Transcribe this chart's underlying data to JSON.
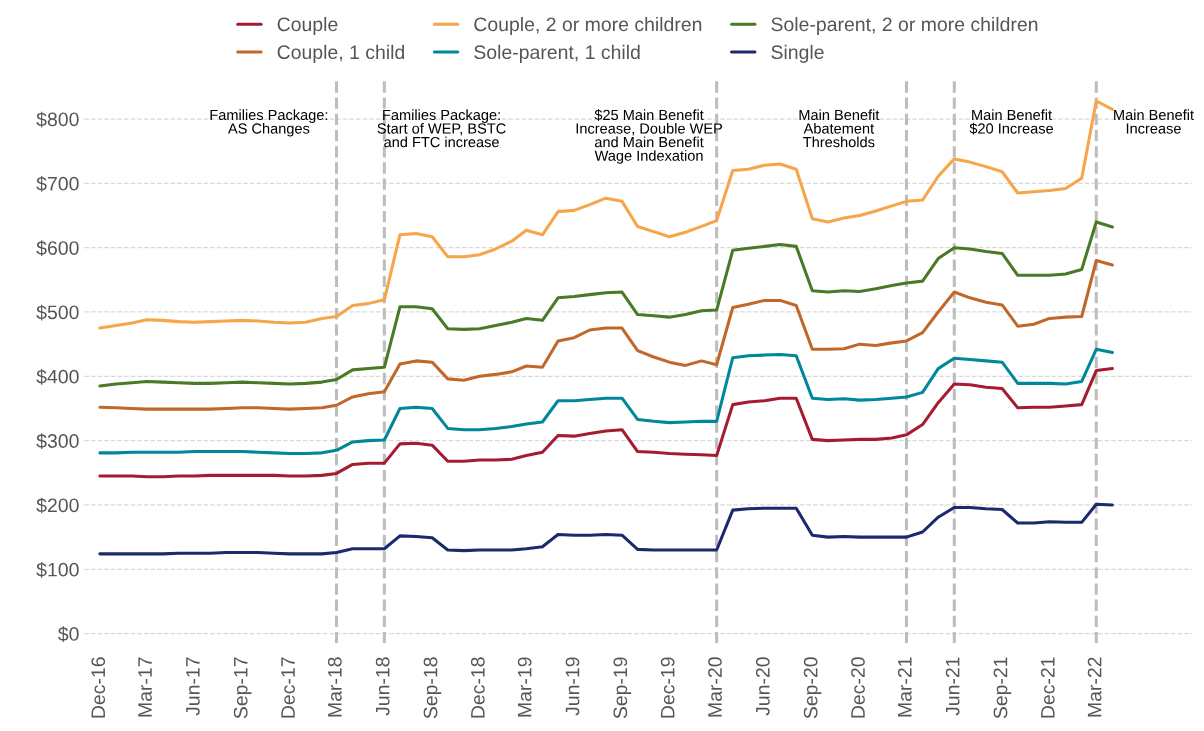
{
  "chart_data": {
    "type": "line",
    "x": [
      "2016-12",
      "2017-01",
      "2017-02",
      "2017-03",
      "2017-04",
      "2017-05",
      "2017-06",
      "2017-07",
      "2017-08",
      "2017-09",
      "2017-10",
      "2017-11",
      "2017-12",
      "2018-01",
      "2018-02",
      "2018-03",
      "2018-04",
      "2018-05",
      "2018-06",
      "2018-07",
      "2018-08",
      "2018-09",
      "2018-10",
      "2018-11",
      "2018-12",
      "2019-01",
      "2019-02",
      "2019-03",
      "2019-04",
      "2019-05",
      "2019-06",
      "2019-07",
      "2019-08",
      "2019-09",
      "2019-10",
      "2019-11",
      "2019-12",
      "2020-01",
      "2020-02",
      "2020-03",
      "2020-04",
      "2020-05",
      "2020-06",
      "2020-07",
      "2020-08",
      "2020-09",
      "2020-10",
      "2020-11",
      "2020-12",
      "2021-01",
      "2021-02",
      "2021-03",
      "2021-04",
      "2021-05",
      "2021-06",
      "2021-07",
      "2021-08",
      "2021-09",
      "2021-10",
      "2021-11",
      "2021-12",
      "2022-01",
      "2022-02",
      "2022-03",
      "2022-04"
    ],
    "series": [
      {
        "name": "Couple",
        "color": "#a51c30",
        "values": [
          245,
          245,
          245,
          244,
          244,
          245,
          245,
          246,
          246,
          246,
          246,
          246,
          245,
          245,
          246,
          249,
          263,
          265,
          265,
          295,
          296,
          293,
          268,
          268,
          270,
          270,
          271,
          277,
          282,
          308,
          307,
          311,
          315,
          317,
          283,
          282,
          280,
          279,
          278,
          277,
          356,
          360,
          362,
          366,
          366,
          302,
          300,
          301,
          302,
          302,
          304,
          309,
          325,
          359,
          388,
          387,
          383,
          381,
          351,
          352,
          352,
          354,
          356,
          409,
          412
        ]
      },
      {
        "name": "Couple, 1 child",
        "color": "#c0682a",
        "values": [
          352,
          351,
          350,
          349,
          349,
          349,
          349,
          349,
          350,
          351,
          351,
          350,
          349,
          350,
          351,
          355,
          368,
          373,
          376,
          419,
          424,
          422,
          396,
          394,
          400,
          403,
          407,
          416,
          414,
          455,
          460,
          472,
          475,
          475,
          440,
          430,
          422,
          417,
          424,
          418,
          507,
          512,
          518,
          518,
          510,
          442,
          442,
          443,
          450,
          448,
          452,
          455,
          468,
          500,
          531,
          522,
          515,
          511,
          478,
          481,
          490,
          492,
          493,
          580,
          573
        ]
      },
      {
        "name": "Couple, 2 or more children",
        "color": "#f6a54a",
        "values": [
          475,
          479,
          483,
          488,
          487,
          485,
          484,
          485,
          486,
          487,
          486,
          484,
          483,
          484,
          490,
          493,
          510,
          513,
          519,
          620,
          622,
          617,
          586,
          586,
          589,
          598,
          610,
          627,
          620,
          656,
          658,
          667,
          677,
          672,
          633,
          625,
          617,
          624,
          633,
          642,
          720,
          722,
          728,
          730,
          722,
          645,
          640,
          646,
          650,
          657,
          665,
          672,
          674,
          711,
          738,
          733,
          726,
          718,
          685,
          687,
          689,
          692,
          708,
          828,
          815
        ]
      },
      {
        "name": "Sole-parent, 1 child",
        "color": "#00879a",
        "values": [
          281,
          281,
          282,
          282,
          282,
          282,
          283,
          283,
          283,
          283,
          282,
          281,
          280,
          280,
          281,
          285,
          298,
          300,
          301,
          350,
          352,
          350,
          319,
          317,
          317,
          319,
          322,
          326,
          329,
          362,
          362,
          364,
          366,
          366,
          333,
          330,
          328,
          329,
          330,
          330,
          429,
          432,
          433,
          434,
          432,
          366,
          364,
          365,
          363,
          364,
          366,
          368,
          375,
          412,
          428,
          426,
          424,
          422,
          389,
          389,
          389,
          388,
          392,
          442,
          437
        ]
      },
      {
        "name": "Sole-parent, 2 or more children",
        "color": "#4a7a26",
        "values": [
          385,
          388,
          390,
          392,
          391,
          390,
          389,
          389,
          390,
          391,
          390,
          389,
          388,
          389,
          391,
          395,
          410,
          412,
          414,
          508,
          508,
          505,
          474,
          473,
          474,
          479,
          484,
          490,
          487,
          522,
          524,
          527,
          530,
          531,
          496,
          494,
          492,
          496,
          502,
          503,
          596,
          599,
          602,
          605,
          602,
          533,
          531,
          533,
          532,
          536,
          541,
          545,
          548,
          583,
          600,
          598,
          594,
          591,
          557,
          557,
          557,
          559,
          566,
          640,
          632
        ]
      },
      {
        "name": "Single",
        "color": "#1a2a6c",
        "values": [
          124,
          124,
          124,
          124,
          124,
          125,
          125,
          125,
          126,
          126,
          126,
          125,
          124,
          124,
          124,
          126,
          132,
          132,
          132,
          152,
          151,
          149,
          130,
          129,
          130,
          130,
          130,
          132,
          135,
          154,
          153,
          153,
          154,
          153,
          131,
          130,
          130,
          130,
          130,
          130,
          192,
          194,
          195,
          195,
          195,
          153,
          150,
          151,
          150,
          150,
          150,
          150,
          158,
          181,
          196,
          196,
          194,
          193,
          172,
          172,
          174,
          173,
          173,
          201,
          200
        ]
      }
    ],
    "xlim": [
      "2016-11",
      "2022-09"
    ],
    "xticks": [
      {
        "value": "2016-12",
        "label": "Dec-16"
      },
      {
        "value": "2017-03",
        "label": "Mar-17"
      },
      {
        "value": "2017-06",
        "label": "Jun-17"
      },
      {
        "value": "2017-09",
        "label": "Sep-17"
      },
      {
        "value": "2017-12",
        "label": "Dec-17"
      },
      {
        "value": "2018-03",
        "label": "Mar-18"
      },
      {
        "value": "2018-06",
        "label": "Jun-18"
      },
      {
        "value": "2018-09",
        "label": "Sep-18"
      },
      {
        "value": "2018-12",
        "label": "Dec-18"
      },
      {
        "value": "2019-03",
        "label": "Mar-19"
      },
      {
        "value": "2019-06",
        "label": "Jun-19"
      },
      {
        "value": "2019-09",
        "label": "Sep-19"
      },
      {
        "value": "2019-12",
        "label": "Dec-19"
      },
      {
        "value": "2020-03",
        "label": "Mar-20"
      },
      {
        "value": "2020-06",
        "label": "Jun-20"
      },
      {
        "value": "2020-09",
        "label": "Sep-20"
      },
      {
        "value": "2020-12",
        "label": "Dec-20"
      },
      {
        "value": "2021-03",
        "label": "Mar-21"
      },
      {
        "value": "2021-06",
        "label": "Jun-21"
      },
      {
        "value": "2021-09",
        "label": "Sep-21"
      },
      {
        "value": "2021-12",
        "label": "Dec-21"
      },
      {
        "value": "2022-03",
        "label": "Mar-22"
      }
    ],
    "ylim": [
      -15,
      860
    ],
    "yticks": [
      {
        "value": 0,
        "label": "$0"
      },
      {
        "value": 100,
        "label": "$100"
      },
      {
        "value": 200,
        "label": "$200"
      },
      {
        "value": 300,
        "label": "$300"
      },
      {
        "value": 400,
        "label": "$400"
      },
      {
        "value": 500,
        "label": "$500"
      },
      {
        "value": 600,
        "label": "$600"
      },
      {
        "value": 700,
        "label": "$700"
      },
      {
        "value": 800,
        "label": "$800"
      }
    ],
    "ref_lines": [
      {
        "axis": "x",
        "value": "2018-03",
        "label": "Families Package:\nAS Changes",
        "color": "#bdbdbd",
        "line_style": "dashed"
      },
      {
        "axis": "x",
        "value": "2018-06",
        "label": "Families Package:\nStart of WEP, BSTC\nand FTC increase",
        "color": "#bdbdbd",
        "line_style": "dashed"
      },
      {
        "axis": "x",
        "value": "2020-03",
        "label": "$25 Main Benefit\nIncrease, Double WEP\nand Main Benefit\nWage Indexation",
        "color": "#bdbdbd",
        "line_style": "dashed"
      },
      {
        "axis": "x",
        "value": "2021-03",
        "label": "Main Benefit\nAbatement\nThresholds",
        "color": "#bdbdbd",
        "line_style": "dashed"
      },
      {
        "axis": "x",
        "value": "2021-06",
        "label": "Main Benefit\n$20 Increase",
        "color": "#bdbdbd",
        "line_style": "dashed"
      },
      {
        "axis": "x",
        "value": "2022-03",
        "label": "Main Benefit\nIncrease",
        "color": "#bdbdbd",
        "line_style": "dashed"
      }
    ],
    "grid": "y",
    "legend": "top",
    "marker": "none",
    "line_style": "solid"
  }
}
